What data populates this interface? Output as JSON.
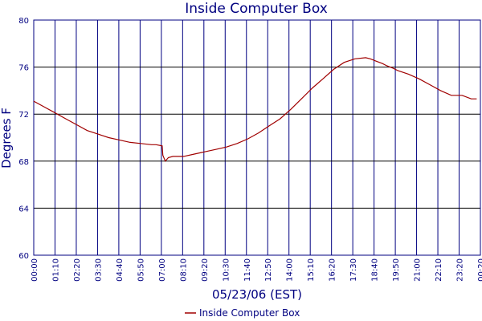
{
  "chart_data": {
    "type": "line",
    "title": "Inside Computer Box",
    "xlabel": "05/23/06 (EST)",
    "ylabel": "Degrees F",
    "x_tick_labels": [
      "00:00",
      "01:10",
      "02:20",
      "03:30",
      "04:40",
      "05:50",
      "07:00",
      "08:10",
      "09:20",
      "10:30",
      "11:40",
      "12:50",
      "14:00",
      "15:10",
      "16:20",
      "17:30",
      "18:40",
      "19:50",
      "21:00",
      "22:10",
      "23:20",
      "00:20"
    ],
    "y_tick_labels": [
      "60",
      "64",
      "68",
      "72",
      "76",
      "80"
    ],
    "ylim": [
      60,
      80
    ],
    "xlim_minutes": [
      0,
      1460
    ],
    "grid": true,
    "legend_position": "bottom-center",
    "series": [
      {
        "name": "Inside Computer Box",
        "color": "#a00000",
        "x_minutes": [
          0,
          35,
          70,
          105,
          140,
          175,
          210,
          245,
          280,
          315,
          350,
          385,
          400,
          420,
          422,
          430,
          440,
          455,
          490,
          525,
          560,
          595,
          630,
          665,
          700,
          735,
          770,
          805,
          840,
          875,
          910,
          945,
          980,
          1015,
          1050,
          1085,
          1100,
          1120,
          1140,
          1155,
          1175,
          1190,
          1225,
          1260,
          1295,
          1330,
          1365,
          1400,
          1430,
          1448
        ],
        "values": [
          73.1,
          72.6,
          72.1,
          71.6,
          71.1,
          70.6,
          70.3,
          70.0,
          69.8,
          69.6,
          69.5,
          69.4,
          69.4,
          69.3,
          68.5,
          68.0,
          68.3,
          68.4,
          68.4,
          68.6,
          68.8,
          69.0,
          69.2,
          69.5,
          69.9,
          70.4,
          71.0,
          71.6,
          72.4,
          73.3,
          74.2,
          75.0,
          75.8,
          76.4,
          76.7,
          76.8,
          76.7,
          76.5,
          76.3,
          76.1,
          75.9,
          75.7,
          75.4,
          75.0,
          74.5,
          74.0,
          73.6,
          73.6,
          73.3,
          73.3
        ]
      }
    ]
  }
}
